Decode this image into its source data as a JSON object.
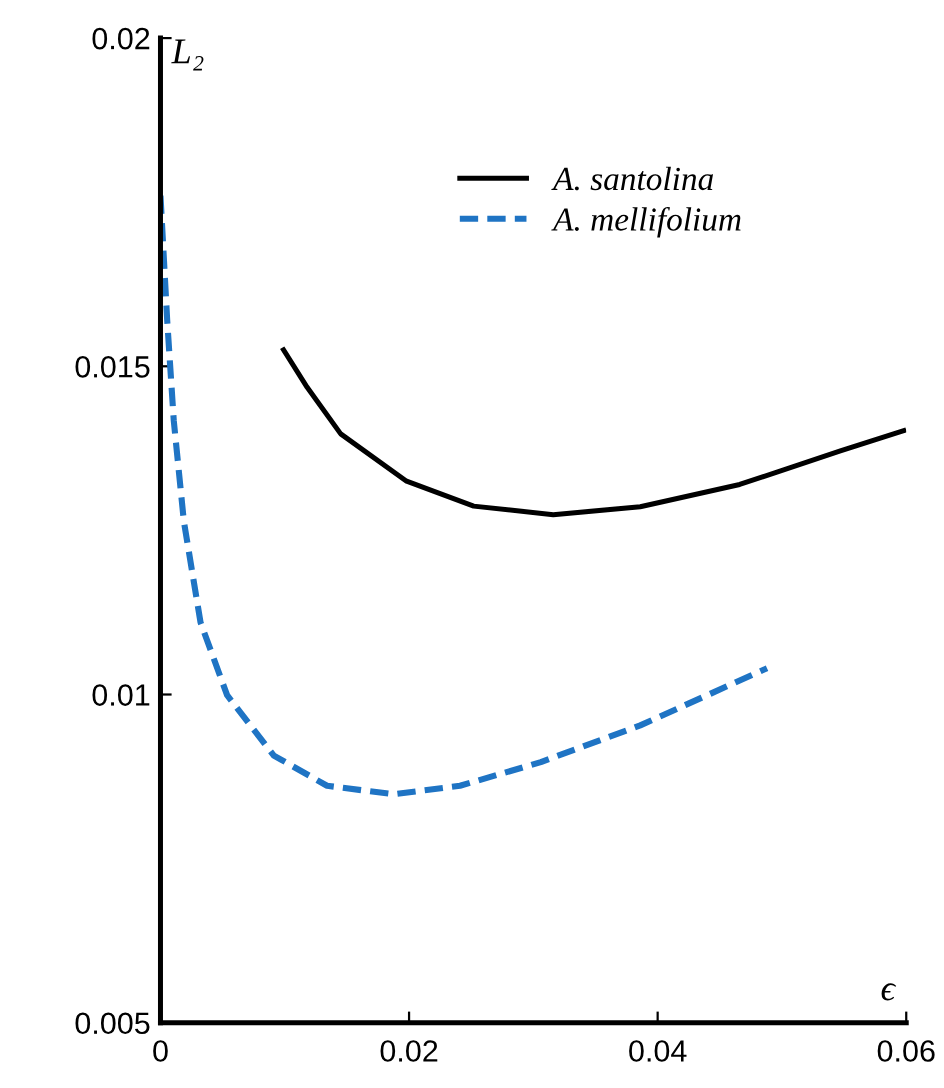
{
  "chart_data": {
    "type": "line",
    "xlabel": "ϵ",
    "ylabel": "L₂",
    "xlim": [
      0,
      0.06
    ],
    "xticks": [
      {
        "value": 0,
        "label": "0"
      },
      0.02,
      0.04,
      0.06
    ],
    "ylim": [
      0.005,
      0.02
    ],
    "yticks": [
      0.005,
      0.01,
      0.015,
      0.02
    ],
    "grid": false,
    "legend": "top right",
    "marker": "none",
    "series": [
      {
        "name": "A. santolina",
        "color": "#000000",
        "line_style": "solid",
        "x": [
          0.0099,
          0.0118,
          0.0145,
          0.0198,
          0.0252,
          0.0316,
          0.0386,
          0.0466,
          0.0547,
          0.0598
        ],
        "values": [
          0.01525,
          0.01468,
          0.01397,
          0.01325,
          0.01287,
          0.01274,
          0.01286,
          0.0132,
          0.01371,
          0.01402
        ]
      },
      {
        "name": "A. mellifolium",
        "color": "#1f74c4",
        "line_style": "dashed",
        "x": [
          0,
          0.00054,
          0.00107,
          0.00188,
          0.00322,
          0.00536,
          0.00912,
          0.0134,
          0.01877,
          0.0241,
          0.0306,
          0.0386,
          0.0488
        ],
        "values": [
          0.0176,
          0.0157,
          0.01417,
          0.01264,
          0.0111,
          0.00999,
          0.00907,
          0.00861,
          0.00848,
          0.00861,
          0.00897,
          0.00953,
          0.0104
        ]
      }
    ]
  }
}
